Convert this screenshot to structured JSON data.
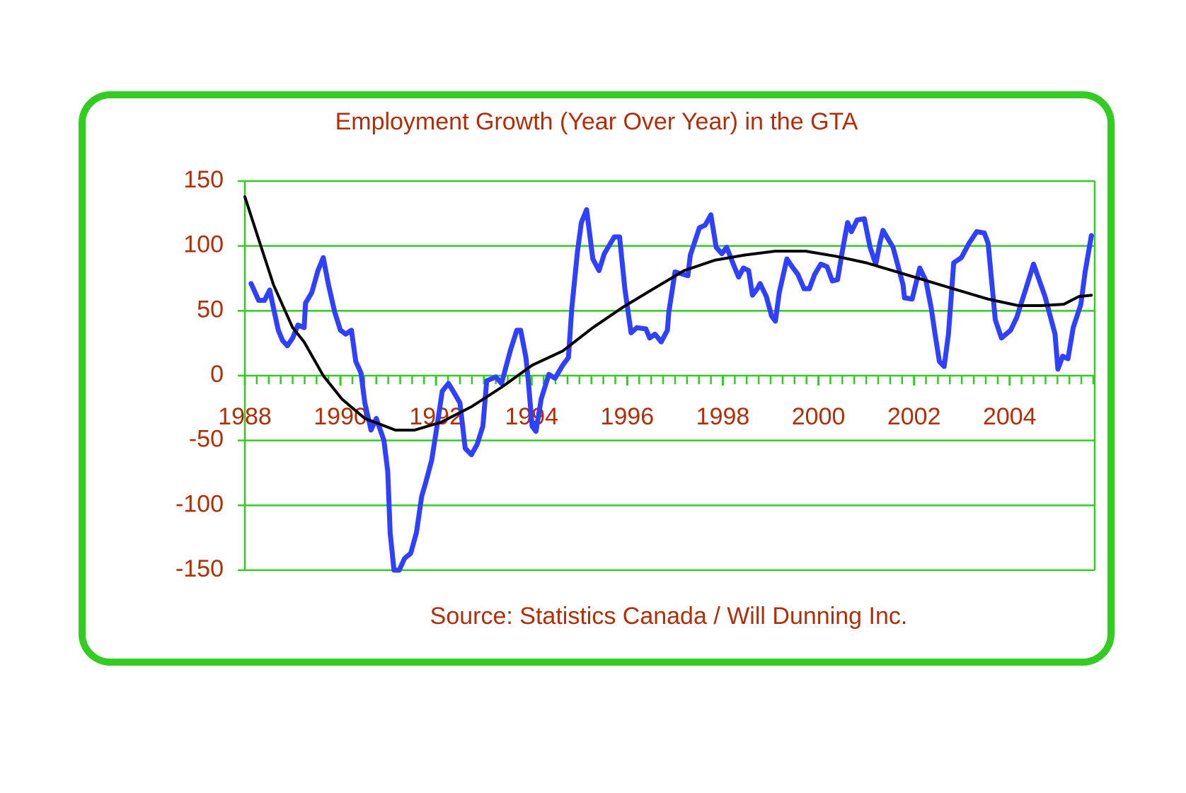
{
  "chart_data": {
    "type": "line",
    "title": "Employment Growth (Year Over Year) in the GTA",
    "source": "Source:  Statistics Canada / Will Dunning Inc.",
    "xlim": [
      1988,
      2005.78
    ],
    "xticks": [
      1988,
      1990,
      1992,
      1994,
      1996,
      1998,
      2000,
      2002,
      2004
    ],
    "ylim": [
      -150,
      150
    ],
    "yticks": [
      -150,
      -100,
      -50,
      0,
      50,
      100,
      150
    ],
    "grid": true,
    "series": [
      {
        "color": "#3040ff",
        "x": [
          1988.13,
          1988.29,
          1988.41,
          1988.52,
          1988.6,
          1988.7,
          1988.79,
          1988.89,
          1989.0,
          1989.11,
          1989.24,
          1989.27,
          1989.4,
          1989.53,
          1989.64,
          1989.75,
          1989.88,
          1990.0,
          1990.11,
          1990.23,
          1990.32,
          1990.43,
          1990.51,
          1990.64,
          1990.75,
          1990.91,
          1990.99,
          1991.04,
          1991.12,
          1991.23,
          1991.34,
          1991.47,
          1991.59,
          1991.7,
          1991.78,
          1991.91,
          1992.02,
          1992.13,
          1992.26,
          1992.39,
          1992.5,
          1992.61,
          1992.74,
          1992.86,
          1992.98,
          1993.06,
          1993.25,
          1993.37,
          1993.45,
          1993.56,
          1993.69,
          1993.77,
          1993.88,
          1993.93,
          1994.01,
          1994.09,
          1994.2,
          1994.36,
          1994.49,
          1994.65,
          1994.77,
          1994.84,
          1994.96,
          1995.04,
          1995.15,
          1995.28,
          1995.41,
          1995.52,
          1995.6,
          1995.73,
          1995.84,
          1995.95,
          1996.08,
          1996.2,
          1996.39,
          1996.47,
          1996.58,
          1996.71,
          1996.84,
          1996.87,
          1997.0,
          1997.27,
          1997.32,
          1997.51,
          1997.63,
          1997.75,
          1997.86,
          1997.98,
          1998.08,
          1998.24,
          1998.33,
          1998.43,
          1998.54,
          1998.62,
          1998.72,
          1998.78,
          1998.91,
          1999.02,
          1999.1,
          1999.18,
          1999.34,
          1999.45,
          1999.57,
          1999.7,
          1999.81,
          1999.92,
          2000.05,
          2000.18,
          2000.29,
          2000.4,
          2000.5,
          2000.61,
          2000.69,
          2000.81,
          2000.96,
          2001.08,
          2001.2,
          2001.29,
          2001.35,
          2001.56,
          2001.77,
          2001.8,
          2001.96,
          2002.12,
          2002.25,
          2002.36,
          2002.44,
          2002.53,
          2002.63,
          2002.72,
          2002.83,
          2002.99,
          2003.15,
          2003.31,
          2003.47,
          2003.55,
          2003.7,
          2003.83,
          2004.02,
          2004.15,
          2004.34,
          2004.5,
          2004.74,
          2004.95,
          2005.01,
          2005.11,
          2005.22,
          2005.33,
          2005.49,
          2005.58,
          2005.71
        ],
        "values": [
          71,
          58,
          58,
          66,
          52,
          35,
          27,
          23,
          29,
          39,
          37,
          56,
          64,
          81,
          91,
          70,
          49,
          35,
          32,
          35,
          11,
          2,
          -21,
          -42,
          -33,
          -50,
          -74,
          -121,
          -150,
          -150,
          -141,
          -137,
          -121,
          -93,
          -83,
          -65,
          -39,
          -12,
          -6,
          -14,
          -21,
          -56,
          -61,
          -53,
          -39,
          -4,
          -1,
          -6,
          5,
          20,
          35,
          35,
          14,
          -4,
          -39,
          -43,
          -18,
          1,
          -2,
          8,
          14,
          52,
          96,
          118,
          128,
          90,
          81,
          94,
          99,
          107,
          107,
          67,
          33,
          37,
          36,
          29,
          32,
          26,
          35,
          49,
          80,
          77,
          93,
          114,
          116,
          124,
          99,
          94,
          99,
          84,
          76,
          83,
          81,
          62,
          67,
          71,
          61,
          46,
          42,
          64,
          90,
          84,
          78,
          67,
          67,
          78,
          86,
          84,
          73,
          74,
          96,
          118,
          111,
          120,
          121,
          99,
          86,
          103,
          112,
          99,
          70,
          60,
          59,
          83,
          73,
          52,
          32,
          11,
          7,
          32,
          87,
          91,
          102,
          111,
          110,
          102,
          43,
          29,
          35,
          45,
          67,
          86,
          61,
          32,
          5,
          15,
          13,
          37,
          55,
          80,
          108
        ]
      },
      {
        "color": "#000000",
        "x": [
          1988,
          1988.29,
          1988.6,
          1989,
          1989.24,
          1989.64,
          1990.03,
          1990.51,
          1991.15,
          1991.55,
          1992.1,
          1992.74,
          1993.37,
          1994.01,
          1994.65,
          1995.28,
          1995.92,
          1996.55,
          1997.19,
          1997.83,
          1998.46,
          1999.1,
          1999.73,
          2000.37,
          2001.0,
          2001.64,
          2002.28,
          2002.91,
          2003.55,
          2004.18,
          2004.66,
          2005.13,
          2005.45,
          2005.71
        ],
        "values": [
          138,
          105,
          70,
          37,
          26,
          0,
          -18,
          -33,
          -42,
          -42,
          -36,
          -24,
          -9,
          8,
          19,
          37,
          53,
          67,
          81,
          89,
          93,
          96,
          96,
          92,
          87,
          80,
          73,
          66,
          59,
          54,
          54,
          55,
          61,
          62
        ]
      }
    ]
  }
}
